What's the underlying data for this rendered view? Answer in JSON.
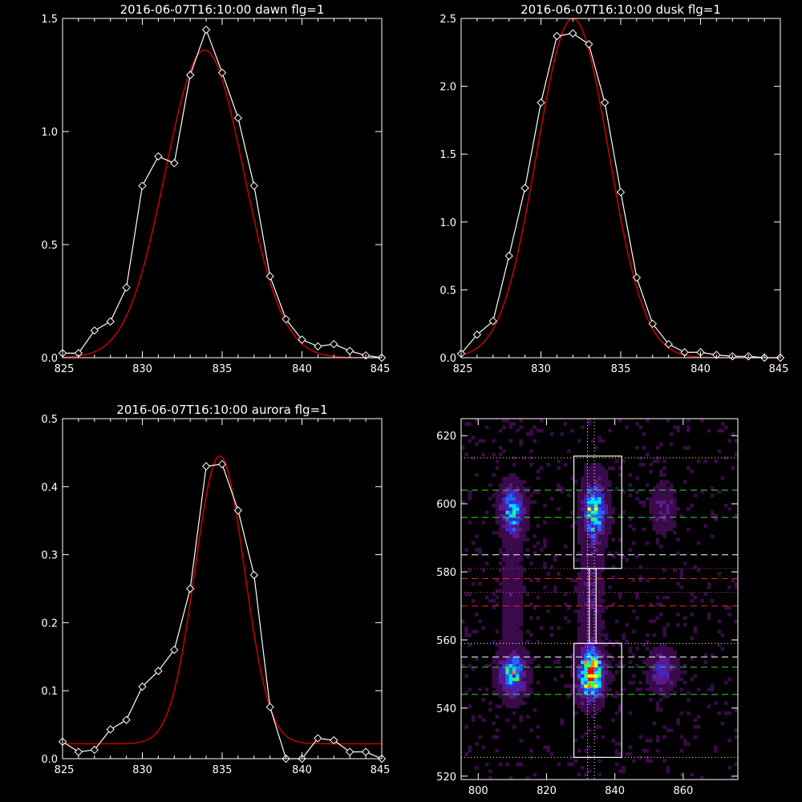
{
  "chart_data": [
    {
      "type": "line",
      "title": "2016-06-07T16:10:00 dawn flg=1",
      "xlim": [
        825,
        845
      ],
      "ylim": [
        0,
        1.5
      ],
      "xticks": [
        "825",
        "830",
        "835",
        "840",
        "845"
      ],
      "yticks": [
        "0.0",
        "0.5",
        "1.0",
        "1.5"
      ],
      "xtick_values": [
        825,
        830,
        835,
        840,
        845
      ],
      "ytick_values": [
        0,
        0.5,
        1.0,
        1.5
      ],
      "grid": false,
      "series": [
        {
          "color": "#ffffff",
          "marker": "diamond",
          "x": [
            825,
            826,
            827,
            828,
            829,
            830,
            831,
            832,
            833,
            834,
            835,
            836,
            837,
            838,
            839,
            840,
            841,
            842,
            843,
            844,
            845
          ],
          "y": [
            0.02,
            0.02,
            0.12,
            0.16,
            0.31,
            0.76,
            0.89,
            0.86,
            1.25,
            1.45,
            1.26,
            1.06,
            0.76,
            0.36,
            0.17,
            0.08,
            0.05,
            0.06,
            0.03,
            0.01,
            0.0
          ]
        },
        {
          "color": "#cc0000",
          "marker": "none",
          "model": "gaussian",
          "params": {
            "amplitude": 1.36,
            "center": 833.9,
            "sigma": 2.45,
            "offset": 0.0
          }
        }
      ]
    },
    {
      "type": "line",
      "title": "2016-06-07T16:10:00 dusk flg=1",
      "xlim": [
        825,
        845
      ],
      "ylim": [
        0,
        2.5
      ],
      "xticks": [
        "825",
        "830",
        "835",
        "840",
        "845"
      ],
      "yticks": [
        "0.0",
        "0.5",
        "1.0",
        "1.5",
        "2.0",
        "2.5"
      ],
      "xtick_values": [
        825,
        830,
        835,
        840,
        845
      ],
      "ytick_values": [
        0,
        0.5,
        1.0,
        1.5,
        2.0,
        2.5
      ],
      "grid": false,
      "series": [
        {
          "color": "#ffffff",
          "marker": "diamond",
          "x": [
            825,
            826,
            827,
            828,
            829,
            830,
            831,
            832,
            833,
            834,
            835,
            836,
            837,
            838,
            839,
            840,
            841,
            842,
            843,
            844,
            845
          ],
          "y": [
            0.03,
            0.17,
            0.27,
            0.75,
            1.25,
            1.88,
            2.37,
            2.39,
            2.31,
            1.88,
            1.22,
            0.59,
            0.25,
            0.1,
            0.04,
            0.04,
            0.02,
            0.01,
            0.01,
            0.0,
            0.0
          ]
        },
        {
          "color": "#cc0000",
          "marker": "none",
          "model": "gaussian",
          "params": {
            "amplitude": 2.5,
            "center": 832.0,
            "sigma": 2.25,
            "offset": 0.0
          }
        }
      ]
    },
    {
      "type": "line",
      "title": "2016-06-07T16:10:00 aurora flg=1",
      "xlim": [
        825,
        845
      ],
      "ylim": [
        0,
        0.5
      ],
      "xticks": [
        "825",
        "830",
        "835",
        "840",
        "845"
      ],
      "yticks": [
        "0.0",
        "0.1",
        "0.2",
        "0.3",
        "0.4",
        "0.5"
      ],
      "xtick_values": [
        825,
        830,
        835,
        840,
        845
      ],
      "ytick_values": [
        0,
        0.1,
        0.2,
        0.3,
        0.4,
        0.5
      ],
      "grid": false,
      "series": [
        {
          "color": "#ffffff",
          "marker": "diamond",
          "x": [
            825,
            826,
            827,
            828,
            829,
            830,
            831,
            832,
            833,
            834,
            835,
            836,
            837,
            838,
            839,
            840,
            841,
            842,
            843,
            844,
            845
          ],
          "y": [
            0.025,
            0.01,
            0.013,
            0.043,
            0.057,
            0.106,
            0.129,
            0.16,
            0.25,
            0.43,
            0.433,
            0.365,
            0.27,
            0.076,
            0.0,
            0.0,
            0.03,
            0.027,
            0.01,
            0.01,
            0.0
          ],
          "note_points": [
            0,
            1,
            2,
            3,
            4,
            5,
            6,
            7,
            8,
            9,
            10,
            11,
            12,
            13,
            14,
            15,
            16,
            17,
            18,
            19
          ]
        },
        {
          "color": "#cc0000",
          "marker": "none",
          "model": "gaussian",
          "params": {
            "amplitude": 0.423,
            "center": 834.85,
            "sigma": 1.55,
            "offset": 0.022
          }
        }
      ]
    },
    {
      "type": "heatmap",
      "title": "",
      "xlim": [
        795,
        876
      ],
      "ylim": [
        519,
        625
      ],
      "xticks": [
        "800",
        "820",
        "840",
        "860"
      ],
      "yticks": [
        "520",
        "540",
        "560",
        "580",
        "600",
        "620"
      ],
      "xtick_values": [
        800,
        820,
        840,
        860
      ],
      "ytick_values": [
        520,
        540,
        560,
        580,
        600,
        620
      ],
      "colormap": [
        "#000000",
        "#3a0a4a",
        "#5a1a8a",
        "#3a2ad0",
        "#1a6aff",
        "#00e0ff",
        "#30ff60",
        "#ffff00",
        "#ff8000",
        "#ff0000"
      ],
      "blobs": [
        {
          "x": 810,
          "y": 598,
          "amp": 0.55,
          "sx": 2.4,
          "sy": 5
        },
        {
          "x": 810,
          "y": 550,
          "amp": 0.65,
          "sx": 2.6,
          "sy": 4.5
        },
        {
          "x": 834,
          "y": 598,
          "amp": 0.62,
          "sx": 2.4,
          "sy": 6
        },
        {
          "x": 833,
          "y": 550,
          "amp": 1.0,
          "sx": 2.4,
          "sy": 5
        },
        {
          "x": 854,
          "y": 599,
          "amp": 0.25,
          "sx": 2.2,
          "sy": 4.5
        },
        {
          "x": 854,
          "y": 551,
          "amp": 0.38,
          "sx": 2.4,
          "sy": 4
        },
        {
          "x": 833,
          "y": 574,
          "amp": 0.22,
          "sx": 2.2,
          "sy": 10
        },
        {
          "x": 810,
          "y": 574,
          "amp": 0.16,
          "sx": 2.2,
          "sy": 10
        }
      ],
      "hlines": [
        {
          "y": 613.5,
          "color": "#ffff66",
          "style": "dotted"
        },
        {
          "y": 604,
          "color": "#33dd33",
          "style": "dashed"
        },
        {
          "y": 596,
          "color": "#33dd33",
          "style": "dashed"
        },
        {
          "y": 585,
          "color": "#ffffff",
          "style": "dashed"
        },
        {
          "y": 581,
          "color": "#cc3399",
          "style": "dotted"
        },
        {
          "y": 578,
          "color": "#ee2222",
          "style": "dashed"
        },
        {
          "y": 574,
          "color": "#cc3399",
          "style": "dotted"
        },
        {
          "y": 570,
          "color": "#ee2222",
          "style": "dashed"
        },
        {
          "y": 559,
          "color": "#ffffff",
          "style": "dotted"
        },
        {
          "y": 555,
          "color": "#ffffff",
          "style": "dashed"
        },
        {
          "y": 552,
          "color": "#33dd33",
          "style": "dashed"
        },
        {
          "y": 544,
          "color": "#33dd33",
          "style": "dashed"
        },
        {
          "y": 525.5,
          "color": "#ffff66",
          "style": "dotted"
        }
      ],
      "vlines": [
        {
          "x": 832,
          "color": "#ffffff",
          "style": "dotted"
        },
        {
          "x": 834,
          "color": "#ffffff",
          "style": "dotted"
        }
      ],
      "boxes": [
        {
          "x0": 828,
          "x1": 842,
          "y0": 581,
          "y1": 614,
          "color": "#ffffff"
        },
        {
          "x0": 828,
          "x1": 842,
          "y0": 525.5,
          "y1": 559,
          "color": "#ffffff"
        },
        {
          "x0": 832.5,
          "x1": 834.5,
          "y0": 559,
          "y1": 581,
          "color": "#ffffff"
        }
      ]
    }
  ]
}
